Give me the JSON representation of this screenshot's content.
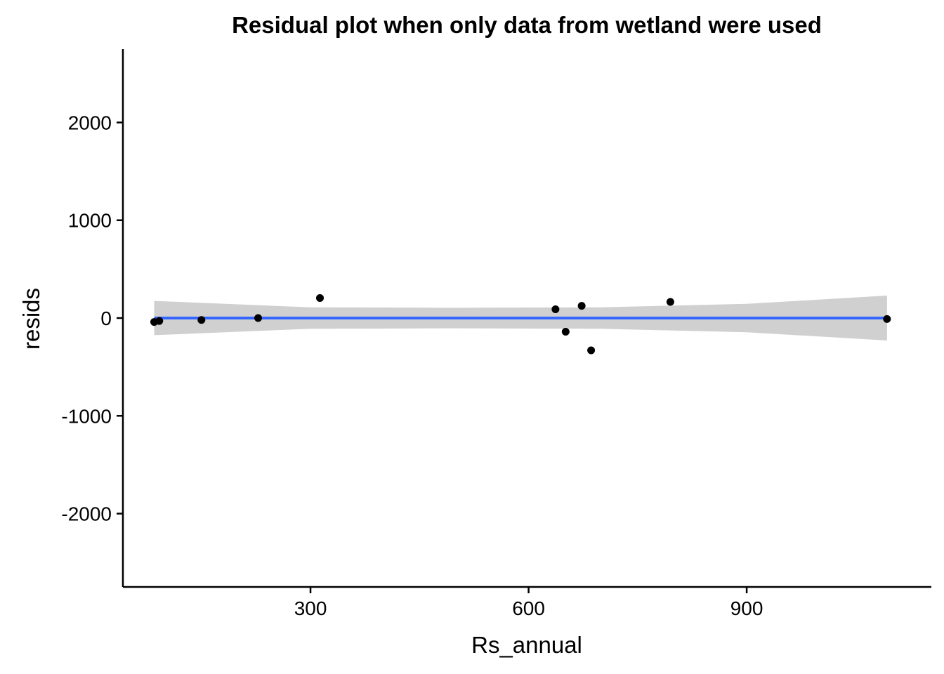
{
  "chart_data": {
    "type": "scatter",
    "title": "Residual plot when only data from wetland were used",
    "xlabel": "Rs_annual",
    "ylabel": "resids",
    "xlim": [
      42,
      1154
    ],
    "ylim": [
      -2750,
      2750
    ],
    "x_ticks": [
      300,
      600,
      900
    ],
    "x_tick_labels": [
      "300",
      "600",
      "900"
    ],
    "y_ticks": [
      -2000,
      -1000,
      0,
      1000,
      2000
    ],
    "y_tick_labels": [
      "-2000",
      "-1000",
      "0",
      "1000",
      "2000"
    ],
    "grid": false,
    "points": [
      {
        "x": 85,
        "y": -40
      },
      {
        "x": 92,
        "y": -30
      },
      {
        "x": 150,
        "y": -20
      },
      {
        "x": 228,
        "y": 0
      },
      {
        "x": 313,
        "y": 205
      },
      {
        "x": 637,
        "y": 90
      },
      {
        "x": 651,
        "y": -140
      },
      {
        "x": 673,
        "y": 125
      },
      {
        "x": 686,
        "y": -330
      },
      {
        "x": 795,
        "y": 165
      },
      {
        "x": 1093,
        "y": -10
      }
    ],
    "fit_line": {
      "x": [
        85,
        1093
      ],
      "y": [
        0,
        0
      ]
    },
    "confidence_band": {
      "x": [
        85,
        300,
        500,
        700,
        900,
        1093
      ],
      "upper": [
        175,
        110,
        105,
        110,
        145,
        230
      ],
      "lower": [
        -175,
        -110,
        -105,
        -110,
        -145,
        -230
      ]
    },
    "colors": {
      "points": "#000000",
      "fit_line": "#3366FF",
      "band": "#d0d0d0",
      "axis": "#000000"
    }
  }
}
